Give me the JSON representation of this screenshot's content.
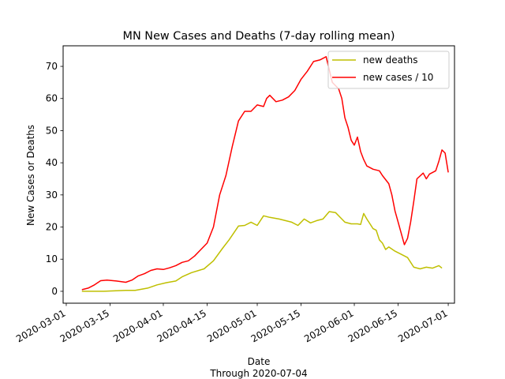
{
  "chart_data": {
    "type": "line",
    "title": "MN New Cases and Deaths (7-day rolling mean)",
    "xlabel": "Date",
    "xlabel_sub": "Through 2020-07-04",
    "ylabel": "New Cases or Deaths",
    "x_ticks": [
      "2020-03-01",
      "2020-03-15",
      "2020-04-01",
      "2020-04-15",
      "2020-05-01",
      "2020-05-15",
      "2020-06-01",
      "2020-06-15",
      "2020-07-01"
    ],
    "y_ticks": [
      0,
      10,
      20,
      30,
      40,
      50,
      60,
      70
    ],
    "xlim": [
      "2020-02-29",
      "2020-07-03"
    ],
    "ylim": [
      -3.7,
      76.4
    ],
    "grid": false,
    "legend_position": "top-right",
    "series": [
      {
        "name": "new deaths",
        "color": "#bfbf00",
        "points": [
          [
            "2020-03-06",
            0
          ],
          [
            "2020-03-13",
            0
          ],
          [
            "2020-03-20",
            0.3
          ],
          [
            "2020-03-23",
            0.3
          ],
          [
            "2020-03-27",
            1
          ],
          [
            "2020-03-30",
            2
          ],
          [
            "2020-04-02",
            2.7
          ],
          [
            "2020-04-05",
            3.2
          ],
          [
            "2020-04-07",
            4.5
          ],
          [
            "2020-04-10",
            5.8
          ],
          [
            "2020-04-14",
            7
          ],
          [
            "2020-04-17",
            9.5
          ],
          [
            "2020-04-20",
            13.5
          ],
          [
            "2020-04-22",
            16
          ],
          [
            "2020-04-25",
            20.3
          ],
          [
            "2020-04-27",
            20.5
          ],
          [
            "2020-04-29",
            21.5
          ],
          [
            "2020-05-01",
            20.5
          ],
          [
            "2020-05-03",
            23.5
          ],
          [
            "2020-05-05",
            23
          ],
          [
            "2020-05-08",
            22.5
          ],
          [
            "2020-05-10",
            22
          ],
          [
            "2020-05-12",
            21.5
          ],
          [
            "2020-05-14",
            20.5
          ],
          [
            "2020-05-16",
            22.5
          ],
          [
            "2020-05-18",
            21.3
          ],
          [
            "2020-05-20",
            22
          ],
          [
            "2020-05-22",
            22.5
          ],
          [
            "2020-05-24",
            24.8
          ],
          [
            "2020-05-26",
            24.5
          ],
          [
            "2020-05-28",
            22.5
          ],
          [
            "2020-05-29",
            21.5
          ],
          [
            "2020-05-31",
            21
          ],
          [
            "2020-06-02",
            21
          ],
          [
            "2020-06-03",
            20.8
          ],
          [
            "2020-06-04",
            24.2
          ],
          [
            "2020-06-05",
            22.5
          ],
          [
            "2020-06-06",
            21
          ],
          [
            "2020-06-07",
            19.5
          ],
          [
            "2020-06-08",
            19
          ],
          [
            "2020-06-09",
            16
          ],
          [
            "2020-06-10",
            15
          ],
          [
            "2020-06-11",
            13
          ],
          [
            "2020-06-12",
            13.8
          ],
          [
            "2020-06-14",
            12.5
          ],
          [
            "2020-06-16",
            11.5
          ],
          [
            "2020-06-18",
            10.5
          ],
          [
            "2020-06-20",
            7.5
          ],
          [
            "2020-06-22",
            7
          ],
          [
            "2020-06-24",
            7.5
          ],
          [
            "2020-06-26",
            7.2
          ],
          [
            "2020-06-28",
            8
          ],
          [
            "2020-06-29",
            7.2
          ]
        ]
      },
      {
        "name": "new cases / 10",
        "color": "#ff0000",
        "points": [
          [
            "2020-03-06",
            0.5
          ],
          [
            "2020-03-08",
            1
          ],
          [
            "2020-03-10",
            2
          ],
          [
            "2020-03-12",
            3.3
          ],
          [
            "2020-03-14",
            3.5
          ],
          [
            "2020-03-17",
            3.2
          ],
          [
            "2020-03-20",
            2.8
          ],
          [
            "2020-03-22",
            3.5
          ],
          [
            "2020-03-24",
            4.8
          ],
          [
            "2020-03-26",
            5.5
          ],
          [
            "2020-03-28",
            6.5
          ],
          [
            "2020-03-30",
            7
          ],
          [
            "2020-04-01",
            6.8
          ],
          [
            "2020-04-03",
            7.3
          ],
          [
            "2020-04-05",
            8
          ],
          [
            "2020-04-07",
            9
          ],
          [
            "2020-04-09",
            9.5
          ],
          [
            "2020-04-11",
            11
          ],
          [
            "2020-04-13",
            13
          ],
          [
            "2020-04-15",
            15
          ],
          [
            "2020-04-17",
            20
          ],
          [
            "2020-04-19",
            30
          ],
          [
            "2020-04-21",
            36
          ],
          [
            "2020-04-23",
            45
          ],
          [
            "2020-04-25",
            53
          ],
          [
            "2020-04-27",
            56
          ],
          [
            "2020-04-29",
            56
          ],
          [
            "2020-05-01",
            58
          ],
          [
            "2020-05-03",
            57.5
          ],
          [
            "2020-05-04",
            60
          ],
          [
            "2020-05-05",
            61
          ],
          [
            "2020-05-07",
            59
          ],
          [
            "2020-05-09",
            59.5
          ],
          [
            "2020-05-11",
            60.5
          ],
          [
            "2020-05-13",
            62.5
          ],
          [
            "2020-05-15",
            66
          ],
          [
            "2020-05-17",
            68.5
          ],
          [
            "2020-05-19",
            71.5
          ],
          [
            "2020-05-21",
            72
          ],
          [
            "2020-05-23",
            73
          ],
          [
            "2020-05-25",
            65
          ],
          [
            "2020-05-27",
            63
          ],
          [
            "2020-05-28",
            60
          ],
          [
            "2020-05-29",
            54
          ],
          [
            "2020-05-30",
            51
          ],
          [
            "2020-05-31",
            47
          ],
          [
            "2020-06-01",
            45.5
          ],
          [
            "2020-06-02",
            48
          ],
          [
            "2020-06-03",
            43.5
          ],
          [
            "2020-06-04",
            41
          ],
          [
            "2020-06-05",
            39
          ],
          [
            "2020-06-07",
            38
          ],
          [
            "2020-06-09",
            37.5
          ],
          [
            "2020-06-10",
            36
          ],
          [
            "2020-06-12",
            33.5
          ],
          [
            "2020-06-13",
            30
          ],
          [
            "2020-06-14",
            25
          ],
          [
            "2020-06-15",
            21.5
          ],
          [
            "2020-06-17",
            14.5
          ],
          [
            "2020-06-18",
            16.5
          ],
          [
            "2020-06-19",
            21.5
          ],
          [
            "2020-06-20",
            28
          ],
          [
            "2020-06-21",
            35
          ],
          [
            "2020-06-23",
            36.8
          ],
          [
            "2020-06-24",
            35
          ],
          [
            "2020-06-25",
            36.5
          ],
          [
            "2020-06-26",
            37
          ],
          [
            "2020-06-27",
            37.5
          ],
          [
            "2020-06-28",
            40.5
          ],
          [
            "2020-06-29",
            44
          ],
          [
            "2020-06-30",
            43
          ],
          [
            "2020-07-01",
            37
          ]
        ]
      }
    ]
  }
}
